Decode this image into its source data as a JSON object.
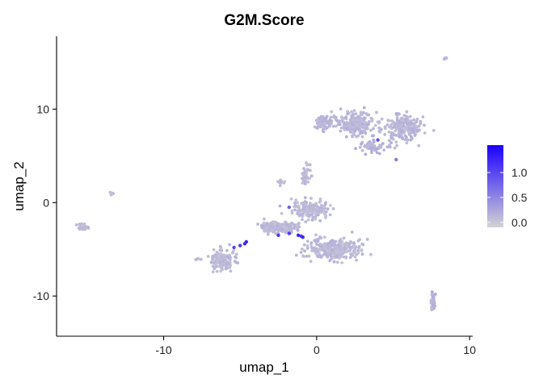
{
  "chart_data": {
    "type": "scatter",
    "title": "G2M.Score",
    "xlabel": "umap_1",
    "ylabel": "umap_2",
    "xlim": [
      -17,
      10.2
    ],
    "ylim": [
      -14.3,
      17.8
    ],
    "x_ticks": [
      -10,
      0,
      10
    ],
    "x_tick_labels": [
      "-10",
      "0",
      "10"
    ],
    "y_ticks": [
      -10,
      0,
      10
    ],
    "y_tick_labels": [
      "-10",
      "0",
      "10"
    ],
    "grid": false,
    "color_scale": {
      "low_color": "#d3d3d3",
      "high_color": "#1a00ff",
      "min": -0.1,
      "max": 1.55,
      "ticks": [
        0.0,
        0.5,
        1.0
      ],
      "tick_labels": [
        "0.0",
        "0.5",
        "1.0"
      ],
      "legend_position": "right"
    },
    "clusters": [
      {
        "cx": 2.5,
        "cy": 8.5,
        "sx": 1.0,
        "sy": 1.0,
        "n": 220,
        "score": 0.12
      },
      {
        "cx": 5.5,
        "cy": 8.0,
        "sx": 1.1,
        "sy": 1.2,
        "n": 200,
        "score": 0.12
      },
      {
        "cx": 3.5,
        "cy": 6.0,
        "sx": 0.9,
        "sy": 0.6,
        "n": 60,
        "score": 0.15
      },
      {
        "cx": 0.5,
        "cy": 8.5,
        "sx": 0.6,
        "sy": 0.7,
        "n": 60,
        "score": 0.12
      },
      {
        "cx": -2.5,
        "cy": -2.6,
        "sx": 1.0,
        "sy": 0.4,
        "n": 230,
        "score": 0.1
      },
      {
        "cx": -0.4,
        "cy": -0.8,
        "sx": 1.0,
        "sy": 0.8,
        "n": 180,
        "score": 0.1
      },
      {
        "cx": 1.2,
        "cy": -5.0,
        "sx": 1.4,
        "sy": 0.9,
        "n": 280,
        "score": 0.1
      },
      {
        "cx": -0.7,
        "cy": 2.8,
        "sx": 0.2,
        "sy": 1.2,
        "n": 40,
        "score": 0.08
      },
      {
        "cx": -6.1,
        "cy": -6.2,
        "sx": 0.7,
        "sy": 1.0,
        "n": 120,
        "score": 0.1
      },
      {
        "cx": -15.3,
        "cy": -2.6,
        "sx": 0.25,
        "sy": 0.35,
        "n": 30,
        "score": 0.08
      },
      {
        "cx": -13.3,
        "cy": 0.9,
        "sx": 0.15,
        "sy": 0.15,
        "n": 8,
        "score": 0.08
      },
      {
        "cx": 7.6,
        "cy": -10.6,
        "sx": 0.12,
        "sy": 1.1,
        "n": 40,
        "score": 0.15
      },
      {
        "cx": 8.4,
        "cy": 15.4,
        "sx": 0.1,
        "sy": 0.1,
        "n": 6,
        "score": 0.12
      },
      {
        "cx": -2.2,
        "cy": 2.2,
        "sx": 0.3,
        "sy": 0.3,
        "n": 10,
        "score": 0.08
      },
      {
        "cx": -7.8,
        "cy": -6.0,
        "sx": 0.15,
        "sy": 0.15,
        "n": 5,
        "score": 0.1
      }
    ],
    "highlight_points": [
      {
        "x": -4.6,
        "y": -4.2,
        "score": 1.3
      },
      {
        "x": -4.7,
        "y": -4.4,
        "score": 1.2
      },
      {
        "x": -5.0,
        "y": -4.6,
        "score": 1.1
      },
      {
        "x": -5.4,
        "y": -4.8,
        "score": 1.0
      },
      {
        "x": -2.5,
        "y": -3.5,
        "score": 1.1
      },
      {
        "x": -1.8,
        "y": -3.3,
        "score": 1.1
      },
      {
        "x": -1.2,
        "y": -3.5,
        "score": 1.3
      },
      {
        "x": -1.0,
        "y": -3.6,
        "score": 1.2
      },
      {
        "x": -0.9,
        "y": -3.7,
        "score": 1.2
      },
      {
        "x": 4.0,
        "y": 6.7,
        "score": 0.9
      },
      {
        "x": -1.8,
        "y": -0.5,
        "score": 0.8
      },
      {
        "x": 5.2,
        "y": 4.6,
        "score": 0.6
      }
    ]
  }
}
